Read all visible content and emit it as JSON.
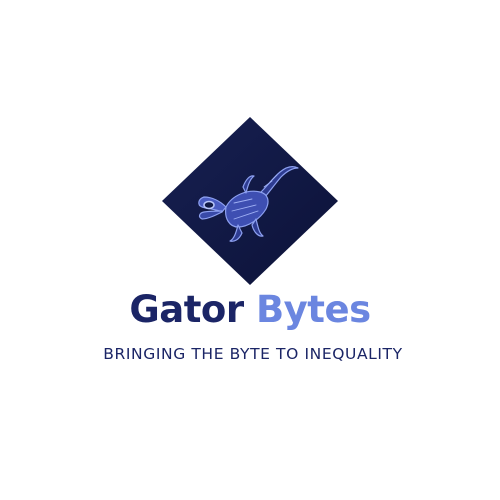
{
  "logo": {
    "icon": "alligator-icon",
    "background_color": "#111a45",
    "accent_color": "#7f95ec"
  },
  "brand": {
    "word1": "Gator",
    "word2": "Bytes",
    "word1_color": "#1b2566",
    "word2_color": "#6b86e0"
  },
  "tagline": "BRINGING THE BYTE TO INEQUALITY"
}
